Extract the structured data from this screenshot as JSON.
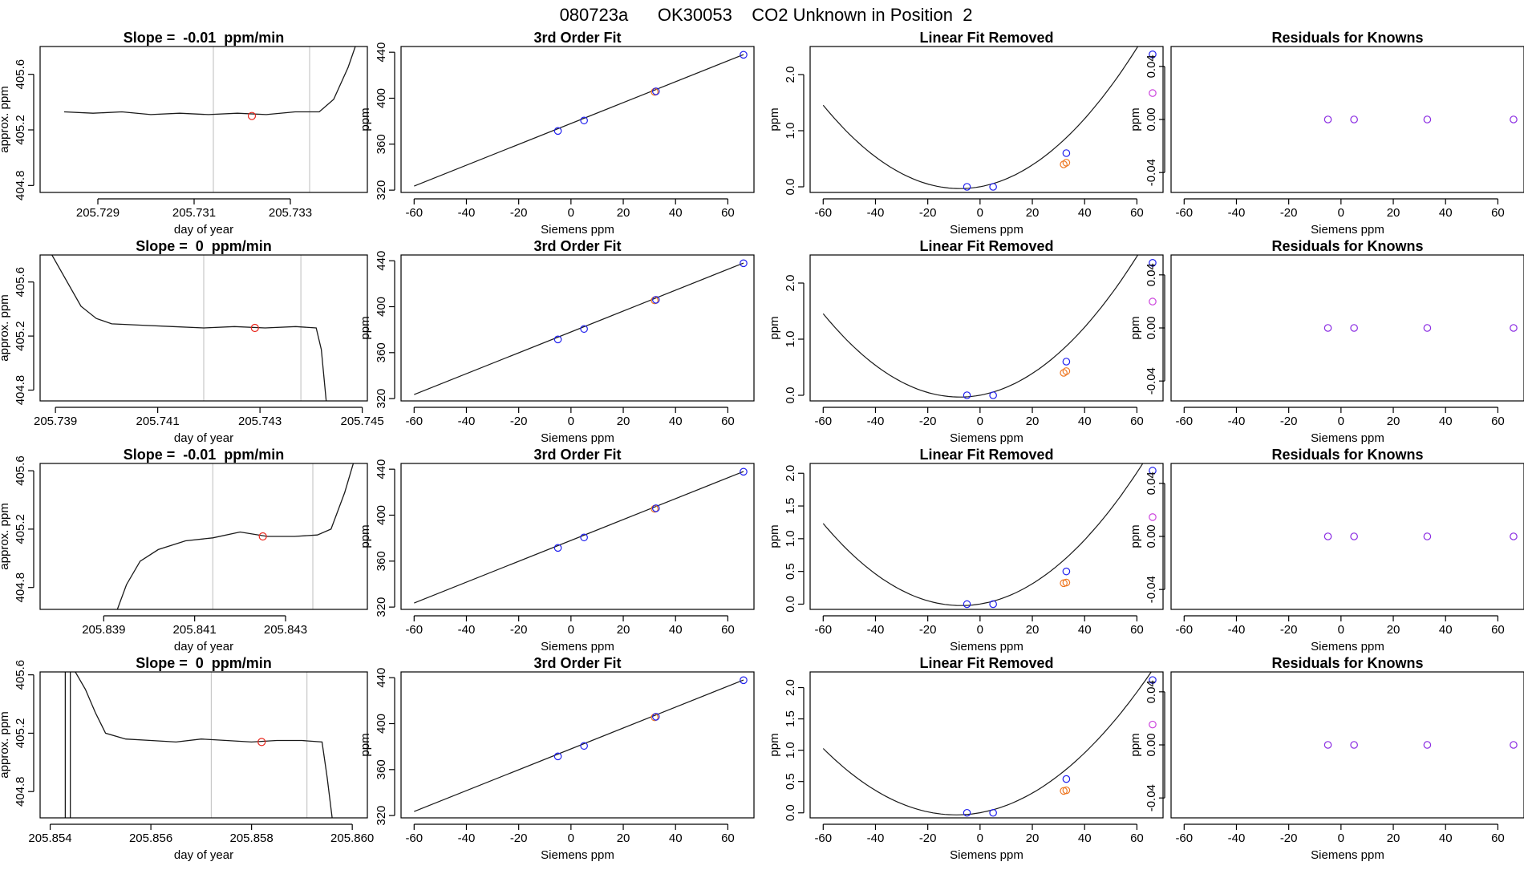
{
  "figure_title": "080723a      OK30053    CO2 Unknown in Position  2",
  "colors": {
    "trace": "#1a1a1a",
    "gridline": "#c8c8c8",
    "unknown_point": "#e8261c",
    "known_point": "#2020ee",
    "orange_point": "#ee7722",
    "magenta_point": "#cc44dd",
    "residual_point": "#8a2be2"
  },
  "chart_data": [
    {
      "type": "line",
      "title": "Slope =  -0.01  ppm/min",
      "xlabel": "day of year",
      "ylabel": "approx. ppm",
      "xlim": [
        205.7278,
        205.7346
      ],
      "ylim": [
        404.75,
        405.8
      ],
      "x_ticks": [
        "205.729",
        "205.731",
        "205.733"
      ],
      "x_tick_values": [
        205.729,
        205.731,
        205.733
      ],
      "y_ticks": [
        "404.8",
        "405.2",
        "405.6"
      ],
      "y_tick_values": [
        404.8,
        405.2,
        405.6
      ],
      "vlines": [
        205.7314,
        205.7334
      ],
      "marker": {
        "x": 205.7322,
        "y": 405.3
      },
      "trace": {
        "x": [
          205.7283,
          205.7289,
          205.7295,
          205.7301,
          205.7307,
          205.7313,
          205.7319,
          205.7325,
          205.7331,
          205.7336,
          205.7339,
          205.7342,
          205.7344
        ],
        "y": [
          405.33,
          405.32,
          405.33,
          405.31,
          405.32,
          405.31,
          405.32,
          405.31,
          405.33,
          405.33,
          405.42,
          405.65,
          405.85
        ]
      }
    },
    {
      "type": "scatter",
      "title": "3rd Order Fit",
      "xlabel": "Siemens ppm",
      "ylabel": "ppm",
      "xlim": [
        -65,
        70
      ],
      "ylim": [
        318,
        445
      ],
      "x_ticks": [
        "-60",
        "-40",
        "-20",
        "0",
        "20",
        "40",
        "60"
      ],
      "x_tick_values": [
        -60,
        -40,
        -20,
        0,
        20,
        40,
        60
      ],
      "y_ticks": [
        "320",
        "360",
        "400",
        "440"
      ],
      "y_tick_values": [
        320,
        360,
        400,
        440
      ],
      "fit_line": {
        "x": [
          -60,
          66
        ],
        "y": [
          323.5,
          438
        ]
      },
      "known_points": {
        "x": [
          -5,
          5,
          32.5,
          66
        ],
        "y": [
          371.5,
          380.6,
          406,
          437.8
        ]
      },
      "orange_points": {
        "x": [
          32
        ],
        "y": [
          405.5
        ]
      }
    },
    {
      "type": "scatter",
      "title": "Linear Fit Removed",
      "xlabel": "Siemens ppm",
      "ylabel": "ppm",
      "xlim": [
        -65,
        70
      ],
      "ylim": [
        -0.1,
        2.5
      ],
      "x_ticks": [
        "-60",
        "-40",
        "-20",
        "0",
        "20",
        "40",
        "60"
      ],
      "x_tick_values": [
        -60,
        -40,
        -20,
        0,
        20,
        40,
        60
      ],
      "y_ticks": [
        "0.0",
        "1.0",
        "2.0"
      ],
      "y_tick_values": [
        0,
        1,
        2
      ],
      "curve_coeffs": [
        0.002,
        0.0085,
        0.000545
      ],
      "known_points": {
        "x": [
          -5,
          5,
          33,
          66
        ],
        "y": [
          0,
          0,
          0.6,
          2.36
        ]
      },
      "orange_points": {
        "x": [
          32,
          33
        ],
        "y": [
          0.4,
          0.43
        ]
      },
      "magenta_points": {
        "x": [
          66
        ],
        "y": [
          1.67
        ]
      }
    },
    {
      "type": "scatter",
      "title": "Residuals for Knowns",
      "xlabel": "Siemens ppm",
      "ylabel": "ppm",
      "xlim": [
        -65,
        70
      ],
      "ylim": [
        -0.055,
        0.055
      ],
      "x_ticks": [
        "-60",
        "-40",
        "-20",
        "0",
        "20",
        "40",
        "60"
      ],
      "x_tick_values": [
        -60,
        -40,
        -20,
        0,
        20,
        40,
        60
      ],
      "y_ticks": [
        "-0.04",
        "0.00",
        "0.04"
      ],
      "y_tick_values": [
        -0.04,
        0,
        0.04
      ],
      "residual_points": {
        "x": [
          -5,
          5,
          33,
          66
        ],
        "y": [
          0,
          0,
          0,
          0
        ]
      }
    },
    {
      "type": "line",
      "title": "Slope =  0  ppm/min",
      "xlabel": "day of year",
      "ylabel": "approx. ppm",
      "xlim": [
        205.7387,
        205.7451
      ],
      "ylim": [
        404.72,
        405.8
      ],
      "x_ticks": [
        "205.739",
        "205.741",
        "205.743",
        "205.745"
      ],
      "x_tick_values": [
        205.739,
        205.741,
        205.743,
        205.745
      ],
      "y_ticks": [
        "404.8",
        "405.2",
        "405.6"
      ],
      "y_tick_values": [
        404.8,
        405.2,
        405.6
      ],
      "vlines": [
        205.7419,
        205.7438
      ],
      "marker": {
        "x": 205.7429,
        "y": 405.26
      },
      "trace": {
        "x": [
          205.7389,
          205.7392,
          205.7395,
          205.7398,
          205.7401,
          205.7407,
          205.7413,
          205.7419,
          205.7425,
          205.7431,
          205.7437,
          205.7441,
          205.7442,
          205.7443
        ],
        "y": [
          405.82,
          405.62,
          405.42,
          405.33,
          405.29,
          405.28,
          405.27,
          405.26,
          405.27,
          405.26,
          405.27,
          405.26,
          405.1,
          404.7
        ]
      }
    },
    {
      "type": "scatter",
      "title": "3rd Order Fit",
      "xlabel": "Siemens ppm",
      "ylabel": "ppm",
      "xlim": [
        -65,
        70
      ],
      "ylim": [
        318,
        445
      ],
      "x_ticks": [
        "-60",
        "-40",
        "-20",
        "0",
        "20",
        "40",
        "60"
      ],
      "x_tick_values": [
        -60,
        -40,
        -20,
        0,
        20,
        40,
        60
      ],
      "y_ticks": [
        "320",
        "360",
        "400",
        "440"
      ],
      "y_tick_values": [
        320,
        360,
        400,
        440
      ],
      "fit_line": {
        "x": [
          -60,
          66
        ],
        "y": [
          323.5,
          438
        ]
      },
      "known_points": {
        "x": [
          -5,
          5,
          32.5,
          66
        ],
        "y": [
          371.5,
          380.6,
          406,
          437.8
        ]
      },
      "orange_points": {
        "x": [
          32
        ],
        "y": [
          405.5
        ]
      }
    },
    {
      "type": "scatter",
      "title": "Linear Fit Removed",
      "xlabel": "Siemens ppm",
      "ylabel": "ppm",
      "xlim": [
        -65,
        70
      ],
      "ylim": [
        -0.1,
        2.5
      ],
      "x_ticks": [
        "-60",
        "-40",
        "-20",
        "0",
        "20",
        "40",
        "60"
      ],
      "x_tick_values": [
        -60,
        -40,
        -20,
        0,
        20,
        40,
        60
      ],
      "y_ticks": [
        "0.0",
        "1.0",
        "2.0"
      ],
      "y_tick_values": [
        0,
        1,
        2
      ],
      "curve_coeffs": [
        0.002,
        0.0085,
        0.000545
      ],
      "known_points": {
        "x": [
          -5,
          5,
          33,
          66
        ],
        "y": [
          0,
          0,
          0.6,
          2.36
        ]
      },
      "orange_points": {
        "x": [
          32,
          33
        ],
        "y": [
          0.4,
          0.43
        ]
      },
      "magenta_points": {
        "x": [
          66
        ],
        "y": [
          1.67
        ]
      }
    },
    {
      "type": "scatter",
      "title": "Residuals for Knowns",
      "xlabel": "Siemens ppm",
      "ylabel": "ppm",
      "xlim": [
        -65,
        70
      ],
      "ylim": [
        -0.055,
        0.055
      ],
      "x_ticks": [
        "-60",
        "-40",
        "-20",
        "0",
        "20",
        "40",
        "60"
      ],
      "x_tick_values": [
        -60,
        -40,
        -20,
        0,
        20,
        40,
        60
      ],
      "y_ticks": [
        "-0.04",
        "0.00",
        "0.04"
      ],
      "y_tick_values": [
        -0.04,
        0,
        0.04
      ],
      "residual_points": {
        "x": [
          -5,
          5,
          33,
          66
        ],
        "y": [
          0,
          0,
          0,
          0
        ]
      }
    },
    {
      "type": "line",
      "title": "Slope =  -0.01  ppm/min",
      "xlabel": "day of year",
      "ylabel": "approx. ppm",
      "xlim": [
        205.8376,
        205.8448
      ],
      "ylim": [
        404.65,
        405.65
      ],
      "x_ticks": [
        "205.839",
        "205.841",
        "205.843"
      ],
      "x_tick_values": [
        205.839,
        205.841,
        205.843
      ],
      "y_ticks": [
        "404.8",
        "405.2",
        "405.6"
      ],
      "y_tick_values": [
        404.8,
        405.2,
        405.6
      ],
      "vlines": [
        205.8414,
        205.8436
      ],
      "marker": {
        "x": 205.8425,
        "y": 405.15
      },
      "trace": {
        "x": [
          205.8393,
          205.8395,
          205.8398,
          205.8402,
          205.8408,
          205.8414,
          205.842,
          205.8426,
          205.8432,
          205.8437,
          205.844,
          205.8443,
          205.8445
        ],
        "y": [
          404.65,
          404.82,
          404.98,
          405.06,
          405.12,
          405.14,
          405.18,
          405.15,
          405.15,
          405.16,
          405.2,
          405.45,
          405.66
        ]
      }
    },
    {
      "type": "scatter",
      "title": "3rd Order Fit",
      "xlabel": "Siemens ppm",
      "ylabel": "ppm",
      "xlim": [
        -65,
        70
      ],
      "ylim": [
        318,
        445
      ],
      "x_ticks": [
        "-60",
        "-40",
        "-20",
        "0",
        "20",
        "40",
        "60"
      ],
      "x_tick_values": [
        -60,
        -40,
        -20,
        0,
        20,
        40,
        60
      ],
      "y_ticks": [
        "320",
        "360",
        "400",
        "440"
      ],
      "y_tick_values": [
        320,
        360,
        400,
        440
      ],
      "fit_line": {
        "x": [
          -60,
          66
        ],
        "y": [
          323.5,
          438
        ]
      },
      "known_points": {
        "x": [
          -5,
          5,
          32.5,
          66
        ],
        "y": [
          371.5,
          380.6,
          406,
          437.8
        ]
      },
      "orange_points": {
        "x": [
          32
        ],
        "y": [
          405.5
        ]
      }
    },
    {
      "type": "scatter",
      "title": "Linear Fit Removed",
      "xlabel": "Siemens ppm",
      "ylabel": "ppm",
      "xlim": [
        -65,
        70
      ],
      "ylim": [
        -0.08,
        2.15
      ],
      "x_ticks": [
        "-60",
        "-40",
        "-20",
        "0",
        "20",
        "40",
        "60"
      ],
      "x_tick_values": [
        -60,
        -40,
        -20,
        0,
        20,
        40,
        60
      ],
      "y_ticks": [
        "0.0",
        "0.5",
        "1.0",
        "1.5",
        "2.0"
      ],
      "y_tick_values": [
        0,
        0.5,
        1,
        1.5,
        2
      ],
      "curve_coeffs": [
        0.002,
        0.0065,
        0.00045
      ],
      "known_points": {
        "x": [
          -5,
          5,
          33,
          66
        ],
        "y": [
          0,
          0,
          0.5,
          2.04
        ]
      },
      "orange_points": {
        "x": [
          32,
          33
        ],
        "y": [
          0.32,
          0.33
        ]
      },
      "magenta_points": {
        "x": [
          66
        ],
        "y": [
          1.33
        ]
      }
    },
    {
      "type": "scatter",
      "title": "Residuals for Knowns",
      "xlabel": "Siemens ppm",
      "ylabel": "ppm",
      "xlim": [
        -65,
        70
      ],
      "ylim": [
        -0.055,
        0.055
      ],
      "x_ticks": [
        "-60",
        "-40",
        "-20",
        "0",
        "20",
        "40",
        "60"
      ],
      "x_tick_values": [
        -60,
        -40,
        -20,
        0,
        20,
        40,
        60
      ],
      "y_ticks": [
        "-0.04",
        "0.00",
        "0.04"
      ],
      "y_tick_values": [
        -0.04,
        0,
        0.04
      ],
      "residual_points": {
        "x": [
          -5,
          5,
          33,
          66
        ],
        "y": [
          0,
          0,
          0,
          0
        ]
      }
    },
    {
      "type": "line",
      "title": "Slope =  0  ppm/min",
      "xlabel": "day of year",
      "ylabel": "approx. ppm",
      "xlim": [
        205.8538,
        205.8603
      ],
      "ylim": [
        404.62,
        405.62
      ],
      "x_ticks": [
        "205.854",
        "205.856",
        "205.858",
        "205.860"
      ],
      "x_tick_values": [
        205.854,
        205.856,
        205.858,
        205.86
      ],
      "y_ticks": [
        "404.8",
        "405.2",
        "405.6"
      ],
      "y_tick_values": [
        404.8,
        405.2,
        405.6
      ],
      "vlines": [
        205.8572,
        205.8591
      ],
      "marker": {
        "x": 205.8582,
        "y": 405.14
      },
      "spikes": [
        205.8543,
        205.8544
      ],
      "trace": {
        "x": [
          205.8545,
          205.8547,
          205.8549,
          205.8551,
          205.8555,
          205.856,
          205.8565,
          205.857,
          205.8575,
          205.858,
          205.8585,
          205.859,
          205.8594,
          205.8595,
          205.8596
        ],
        "y": [
          405.62,
          405.5,
          405.34,
          405.2,
          405.16,
          405.15,
          405.14,
          405.16,
          405.15,
          405.14,
          405.15,
          405.15,
          405.14,
          404.9,
          404.62
        ]
      }
    },
    {
      "type": "scatter",
      "title": "3rd Order Fit",
      "xlabel": "Siemens ppm",
      "ylabel": "ppm",
      "xlim": [
        -65,
        70
      ],
      "ylim": [
        318,
        445
      ],
      "x_ticks": [
        "-60",
        "-40",
        "-20",
        "0",
        "20",
        "40",
        "60"
      ],
      "x_tick_values": [
        -60,
        -40,
        -20,
        0,
        20,
        40,
        60
      ],
      "y_ticks": [
        "320",
        "360",
        "400",
        "440"
      ],
      "y_tick_values": [
        320,
        360,
        400,
        440
      ],
      "fit_line": {
        "x": [
          -60,
          66
        ],
        "y": [
          323.5,
          438
        ]
      },
      "known_points": {
        "x": [
          -5,
          5,
          32.5,
          66
        ],
        "y": [
          371.5,
          380.6,
          406,
          437.8
        ]
      },
      "orange_points": {
        "x": [
          32
        ],
        "y": [
          405.5
        ]
      }
    },
    {
      "type": "scatter",
      "title": "Linear Fit Removed",
      "xlabel": "Siemens ppm",
      "ylabel": "ppm",
      "xlim": [
        -65,
        70
      ],
      "ylim": [
        -0.08,
        2.25
      ],
      "x_ticks": [
        "-60",
        "-40",
        "-20",
        "0",
        "20",
        "40",
        "60"
      ],
      "x_tick_values": [
        -60,
        -40,
        -20,
        0,
        20,
        40,
        60
      ],
      "y_ticks": [
        "0.0",
        "0.5",
        "1.0",
        "1.5",
        "2.0"
      ],
      "y_tick_values": [
        0,
        0.5,
        1,
        1.5,
        2
      ],
      "curve_coeffs": [
        0.002,
        0.0075,
        0.00041
      ],
      "known_points": {
        "x": [
          -5,
          5,
          33,
          66
        ],
        "y": [
          0,
          0,
          0.54,
          2.12
        ]
      },
      "orange_points": {
        "x": [
          32,
          33
        ],
        "y": [
          0.35,
          0.36
        ]
      },
      "magenta_points": {
        "x": [
          66
        ],
        "y": [
          1.41
        ]
      }
    },
    {
      "type": "scatter",
      "title": "Residuals for Knowns",
      "xlabel": "Siemens ppm",
      "ylabel": "ppm",
      "xlim": [
        -65,
        70
      ],
      "ylim": [
        -0.055,
        0.055
      ],
      "x_ticks": [
        "-60",
        "-40",
        "-20",
        "0",
        "20",
        "40",
        "60"
      ],
      "x_tick_values": [
        -60,
        -40,
        -20,
        0,
        20,
        40,
        60
      ],
      "y_ticks": [
        "-0.04",
        "0.00",
        "0.04"
      ],
      "y_tick_values": [
        -0.04,
        0,
        0.04
      ],
      "residual_points": {
        "x": [
          -5,
          5,
          33,
          66
        ],
        "y": [
          0,
          0,
          0,
          0
        ]
      }
    }
  ]
}
